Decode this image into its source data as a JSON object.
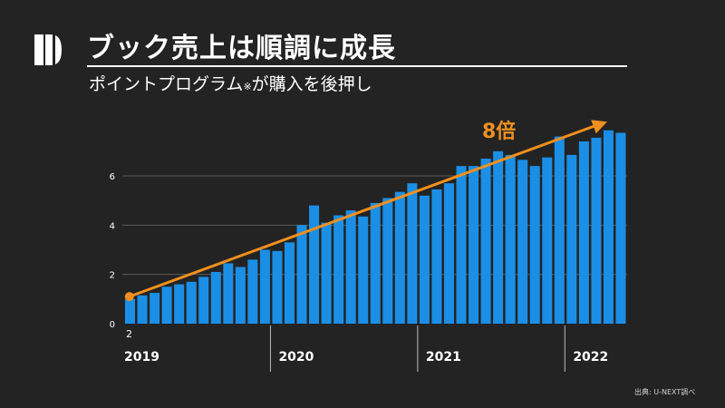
{
  "header": {
    "title": "ブック売上は順調に成長",
    "subtitle_main": "ポイントプログラム",
    "subtitle_note": "※",
    "subtitle_tail": "が購入を後押し"
  },
  "source": "出典: U-NEXT調べ",
  "colors": {
    "background": "#232323",
    "bar": "#1b8fe6",
    "arrow": "#f0901e",
    "grid": "#5a5a5a",
    "text": "#ffffff"
  },
  "chart_data": {
    "type": "bar",
    "title": "ブック売上は順調に成長",
    "ylim": [
      0,
      8
    ],
    "yticks": [
      "0",
      "2",
      "4",
      "6"
    ],
    "xlabel": "",
    "ylabel": "",
    "start_label": "2",
    "years": [
      {
        "label": "2019",
        "start_index": 0
      },
      {
        "label": "2020",
        "start_index": 12
      },
      {
        "label": "2021",
        "start_index": 24
      },
      {
        "label": "2022",
        "start_index": 36
      }
    ],
    "values": [
      1.0,
      1.15,
      1.25,
      1.5,
      1.6,
      1.7,
      1.9,
      2.1,
      2.45,
      2.3,
      2.6,
      3.0,
      2.95,
      3.3,
      4.0,
      4.8,
      4.1,
      4.4,
      4.6,
      4.35,
      4.9,
      5.1,
      5.35,
      5.7,
      5.2,
      5.45,
      5.7,
      6.4,
      6.4,
      6.7,
      7.0,
      6.85,
      6.65,
      6.4,
      6.75,
      7.6,
      6.85,
      7.4,
      7.55,
      7.85,
      7.75
    ],
    "trend": {
      "from": 1.1,
      "to": 8.2,
      "label": "8倍"
    }
  }
}
